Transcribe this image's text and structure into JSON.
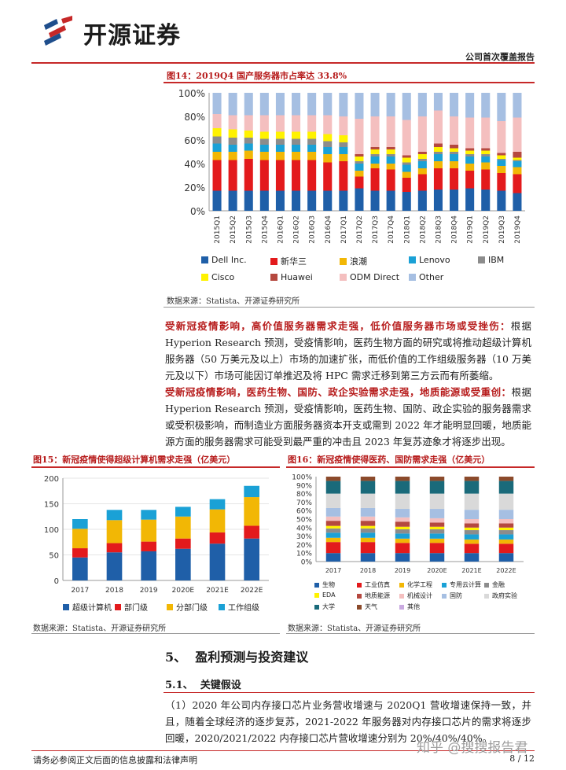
{
  "header": {
    "logo_text": "开源证券",
    "report_type": "公司首次覆盖报告"
  },
  "colors": {
    "accent_red": "#c62828",
    "title_red": "#b71c1c"
  },
  "fig14": {
    "title": "图14：2019Q4 国产服务器市占率达 33.8%",
    "source": "数据来源：Statista、开源证券研究所"
  },
  "para1": {
    "bold": "受新冠疫情影响，高价值服务器需求走强，低价值服务器市场或受挫伤：",
    "text": "根据Hyperion Research 预测，受疫情影响，医药生物方面的研究或将推动超级计算机服务器（50 万美元及以上）市场的加速扩张，而低价值的工作组级服务器（10 万美元及以下）市场可能因订单推迟及将 HPC 需求迁移到第三方云而有所萎缩。"
  },
  "para2": {
    "bold": "受新冠疫情影响，医药生物、国防、政企实验需求走强，地质能源或受重创：",
    "text": "根据Hyperion Research 预测，受疫情影响，医药生物、国防、政企实验的服务器需求或受积极影响，而制造业方面服务器资本开支或需到 2022 年才能明显回暖，地质能源方面的服务器需求可能受到最严重的冲击且 2023 年复苏迹象才将逐步出现。"
  },
  "fig15": {
    "title": "图15：新冠疫情使得超级计算机需求走强（亿美元）",
    "source": "数据来源：Statista、开源证券研究所"
  },
  "fig16": {
    "title": "图16：新冠疫情使得医药、国防需求走强（亿美元）",
    "source": "数据来源：Statista、开源证券研究所"
  },
  "section5": {
    "num": "5、",
    "title": "盈利预测与投资建议"
  },
  "section51": {
    "num": "5.1、",
    "title": "关键假设"
  },
  "para3": "（1）2020 年公司内存接口芯片业务营收增速与 2020Q1 营收增速保持一致，并且，随着全球经济的逐步复苏，2021-2022 年服务器对内存接口芯片的需求将逐步回暖，2020/2021/2022 内存接口芯片营收增速分别为 20%/40%/40%。",
  "footer": {
    "disclaimer": "请务必参阅正文后面的信息披露和法律声明",
    "page": "8 / 12",
    "watermark": "知乎 @搜搜报告君"
  },
  "chart_data": [
    {
      "type": "bar",
      "stacked": true,
      "percent": true,
      "categories": [
        "2015Q1",
        "2015Q2",
        "2015Q3",
        "2015Q4",
        "2016Q1",
        "2016Q2",
        "2016Q3",
        "2016Q4",
        "2017Q1",
        "2017Q2",
        "2017Q3",
        "2017Q4",
        "2018Q1",
        "2018Q2",
        "2018Q3",
        "2018Q4",
        "2019Q1",
        "2019Q2",
        "2019Q3",
        "2019Q4"
      ],
      "yticks": [
        "0%",
        "20%",
        "40%",
        "60%",
        "80%",
        "100%"
      ],
      "ylim": [
        0,
        100
      ],
      "legend_position": "bottom",
      "series": [
        {
          "name": "Dell Inc.",
          "color": "#1f5fa8",
          "values": [
            17,
            17,
            17,
            17,
            17,
            17,
            17,
            17,
            17,
            19,
            17,
            17,
            16,
            17,
            18,
            18,
            19,
            18,
            17,
            15
          ]
        },
        {
          "name": "新华三",
          "color": "#e31a1c",
          "values": [
            26,
            26,
            27,
            26,
            26,
            26,
            26,
            24,
            25,
            10,
            19,
            18,
            12,
            14,
            18,
            18,
            15,
            17,
            15,
            16
          ]
        },
        {
          "name": "浪潮",
          "color": "#f2b705",
          "values": [
            7,
            7,
            7,
            7,
            7,
            7,
            7,
            7,
            6,
            5,
            4,
            5,
            5,
            5,
            6,
            6,
            6,
            6,
            6,
            6
          ]
        },
        {
          "name": "Lenovo",
          "color": "#1aa1d6",
          "values": [
            7,
            6,
            6,
            6,
            6,
            6,
            6,
            6,
            6,
            6,
            6,
            6,
            6,
            6,
            6,
            6,
            6,
            5,
            5,
            5
          ]
        },
        {
          "name": "IBM",
          "color": "#8c8c8c",
          "values": [
            6,
            6,
            5,
            5,
            5,
            5,
            5,
            5,
            4,
            2,
            2,
            2,
            2,
            2,
            2,
            2,
            2,
            2,
            1,
            1
          ]
        },
        {
          "name": "Cisco",
          "color": "#fff200",
          "values": [
            7,
            7,
            6,
            6,
            6,
            6,
            6,
            6,
            6,
            4,
            4,
            4,
            4,
            4,
            4,
            3,
            3,
            3,
            3,
            2
          ]
        },
        {
          "name": "Huawei",
          "color": "#b5483f",
          "values": [
            0,
            0,
            0,
            0,
            0,
            0,
            0,
            0,
            0,
            2,
            2,
            2,
            2,
            2,
            3,
            3,
            2,
            2,
            2,
            5
          ]
        },
        {
          "name": "ODM Direct",
          "color": "#f4bfbf",
          "values": [
            12,
            12,
            13,
            14,
            14,
            14,
            14,
            16,
            16,
            30,
            26,
            26,
            30,
            30,
            28,
            24,
            26,
            26,
            27,
            29
          ]
        },
        {
          "name": "Other",
          "color": "#a6bfe2",
          "values": [
            18,
            19,
            19,
            19,
            19,
            19,
            19,
            19,
            20,
            22,
            20,
            20,
            23,
            20,
            15,
            20,
            21,
            21,
            24,
            21
          ]
        }
      ]
    },
    {
      "type": "bar",
      "stacked": true,
      "categories": [
        "2017",
        "2018",
        "2019",
        "2020E",
        "2021E",
        "2022E"
      ],
      "yticks": [
        "0",
        "50",
        "100",
        "150",
        "200"
      ],
      "ylim": [
        0,
        200
      ],
      "legend_position": "bottom",
      "series": [
        {
          "name": "超级计算机",
          "color": "#1f5fa8",
          "values": [
            45,
            55,
            57,
            62,
            72,
            82
          ]
        },
        {
          "name": "部门级",
          "color": "#e31a1c",
          "values": [
            18,
            18,
            19,
            20,
            22,
            25
          ]
        },
        {
          "name": "分部门级",
          "color": "#f2b705",
          "values": [
            38,
            45,
            43,
            43,
            45,
            56
          ]
        },
        {
          "name": "工作组级",
          "color": "#1aa1d6",
          "values": [
            19,
            20,
            19,
            19,
            20,
            22
          ]
        }
      ]
    },
    {
      "type": "bar",
      "stacked": true,
      "percent": true,
      "categories": [
        "2017",
        "2018",
        "2019",
        "2020E",
        "2021E",
        "2022E"
      ],
      "yticks": [
        "0%",
        "10%",
        "20%",
        "30%",
        "40%",
        "50%",
        "60%",
        "70%",
        "80%",
        "90%",
        "100%"
      ],
      "ylim": [
        0,
        100
      ],
      "legend_position": "bottom",
      "series": [
        {
          "name": "生物",
          "color": "#1f5fa8",
          "values": [
            10,
            10,
            10,
            10,
            10,
            10
          ]
        },
        {
          "name": "工业仿真",
          "color": "#e31a1c",
          "values": [
            13,
            13,
            12,
            12,
            11,
            11
          ]
        },
        {
          "name": "化学工程",
          "color": "#f2b705",
          "values": [
            5,
            5,
            5,
            5,
            5,
            5
          ]
        },
        {
          "name": "专用云计算",
          "color": "#1aa1d6",
          "values": [
            6,
            6,
            6,
            6,
            6,
            6
          ]
        },
        {
          "name": "金融",
          "color": "#8c8c8c",
          "values": [
            5,
            5,
            5,
            5,
            5,
            5
          ]
        },
        {
          "name": "EDA",
          "color": "#fff200",
          "values": [
            3,
            3,
            3,
            3,
            3,
            3
          ]
        },
        {
          "name": "地质能源",
          "color": "#b5483f",
          "values": [
            6,
            6,
            6,
            5,
            5,
            5
          ]
        },
        {
          "name": "机械设计",
          "color": "#f4bfbf",
          "values": [
            5,
            5,
            5,
            5,
            5,
            5
          ]
        },
        {
          "name": "国防",
          "color": "#a6bfe2",
          "values": [
            10,
            10,
            10,
            11,
            11,
            11
          ]
        },
        {
          "name": "政府实验",
          "color": "#d9d9d9",
          "values": [
            17,
            17,
            18,
            18,
            19,
            19
          ]
        },
        {
          "name": "大学",
          "color": "#1a6a7a",
          "values": [
            15,
            15,
            15,
            15,
            15,
            15
          ]
        },
        {
          "name": "天气",
          "color": "#8b4a2b",
          "values": [
            5,
            5,
            5,
            5,
            5,
            5
          ]
        },
        {
          "name": "其他",
          "color": "#c9a9e0",
          "values": [
            0,
            0,
            0,
            0,
            0,
            0
          ]
        }
      ]
    }
  ]
}
